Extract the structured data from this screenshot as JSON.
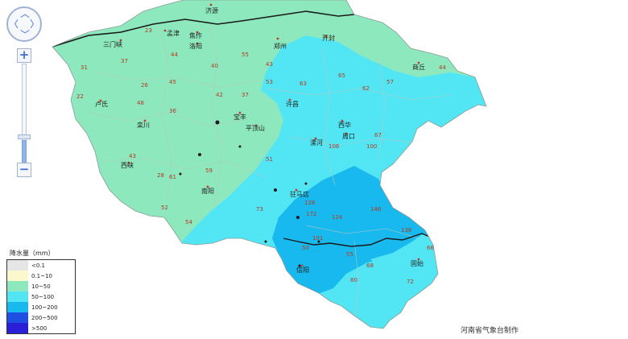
{
  "map": {
    "colors": {
      "c10_50": "#8de8be",
      "c50_100": "#52e6f5",
      "c100_200": "#17b9ee",
      "boundary": "#1a1a1a",
      "county": "#b8c7c0"
    },
    "cities": [
      {
        "name": "济源"
      },
      {
        "name": "焦作"
      },
      {
        "name": "三门峡"
      },
      {
        "name": "孟津"
      },
      {
        "name": "洛阳"
      },
      {
        "name": "郑州"
      },
      {
        "name": "开封"
      },
      {
        "name": "商丘"
      },
      {
        "name": "卢氏"
      },
      {
        "name": "许昌"
      },
      {
        "name": "栾川"
      },
      {
        "name": "宝丰"
      },
      {
        "name": "平顶山"
      },
      {
        "name": "西华"
      },
      {
        "name": "周口"
      },
      {
        "name": "漯河"
      },
      {
        "name": "西峡"
      },
      {
        "name": "南阳"
      },
      {
        "name": "驻马店"
      },
      {
        "name": "信阳"
      },
      {
        "name": "固始"
      }
    ],
    "values": [
      "23",
      "44",
      "37",
      "31",
      "26",
      "22",
      "45",
      "55",
      "40",
      "43",
      "36",
      "48",
      "53",
      "63",
      "65",
      "62",
      "57",
      "44",
      "42",
      "37",
      "67",
      "43",
      "106",
      "59",
      "61",
      "100",
      "52",
      "54",
      "73",
      "128",
      "124",
      "101",
      "138",
      "146",
      "172",
      "55",
      "68",
      "72",
      "51",
      "66",
      "50",
      "80",
      "28"
    ]
  },
  "controls": {
    "nav_up": "︿",
    "nav_down": "﹀",
    "nav_left": "〈",
    "nav_right": "〉",
    "zoom_in": "+",
    "zoom_out": "−"
  },
  "legend": {
    "title": "降水量（mm）",
    "items": [
      {
        "label": "<0.1",
        "color": "#e6e6e6"
      },
      {
        "label": "0.1~10",
        "color": "#fbf8cd"
      },
      {
        "label": "10~50",
        "color": "#8de8be"
      },
      {
        "label": "50~100",
        "color": "#52e6f5"
      },
      {
        "label": "100~200",
        "color": "#17b9ee"
      },
      {
        "label": "200~500",
        "color": "#1d4fe3"
      },
      {
        "label": ">500",
        "color": "#2a1fd6"
      }
    ]
  },
  "credit": "河南省气象台制作"
}
